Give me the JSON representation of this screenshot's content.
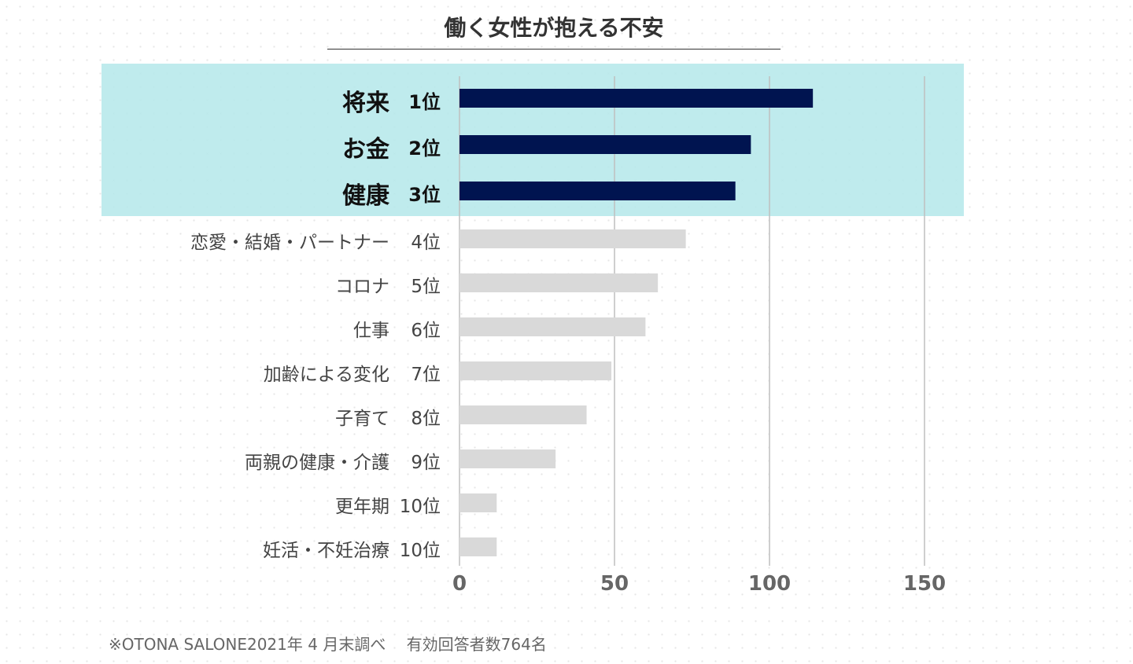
{
  "chart_data": {
    "type": "bar",
    "orientation": "horizontal",
    "title": "働く女性が抱える不安",
    "categories": [
      "将来",
      "お金",
      "健康",
      "恋愛・結婚・パートナー",
      "コロナ",
      "仕事",
      "加齢による変化",
      "子育て",
      "両親の健康・介護",
      "更年期",
      "妊活・不妊治療"
    ],
    "ranks": [
      "1位",
      "2位",
      "3位",
      "4位",
      "5位",
      "6位",
      "7位",
      "8位",
      "9位",
      "10位",
      "10位"
    ],
    "values": [
      114,
      94,
      89,
      73,
      64,
      60,
      49,
      41,
      31,
      12,
      12
    ],
    "highlighted_count": 3,
    "xlim": [
      0,
      150
    ],
    "xticks": [
      0,
      50,
      100,
      150
    ],
    "xtick_labels": [
      "0",
      "50",
      "100",
      "150"
    ],
    "grid": "vertical",
    "colors": {
      "highlight_bar": "#001450",
      "bar": "#d9d9d9",
      "highlight_band": "#c2ecee",
      "grid": "#bfbfbf"
    }
  },
  "footnote": "※OTONA SALONE2021年 4 月末調べ　 有効回答者数764名"
}
